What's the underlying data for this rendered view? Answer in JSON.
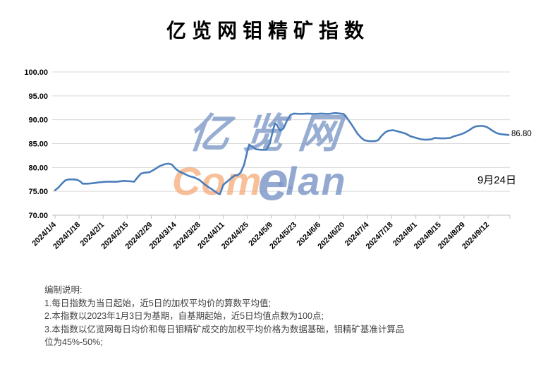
{
  "title": "亿览网钼精矿指数",
  "annotations": {
    "last_value_label": "86.80",
    "date_label": "9月24日"
  },
  "watermark": {
    "line1": "亿览网",
    "brand_com": "Com",
    "brand_e": "e",
    "brand_lan": "lan"
  },
  "notes": {
    "heading": "编制说明:",
    "items": [
      "1.每日指数为当日起始，近5日的加权平均价的算数平均值;",
      "2.本指数以2023年1月3日为基期，自基期起始，近5日均值点数为100点;",
      "3.本指数以亿览网每日均价和每日钼精矿成交的加权平均价格为数据基础，钼精矿基准计算品位为45%-50%;"
    ]
  },
  "colors": {
    "line": "#4A7EBB",
    "grid": "#D9D9D9",
    "axis": "#BFBFBF",
    "label_text": "#000000",
    "notes_text": "#404040",
    "watermark_blue": "#7994C5",
    "watermark_orange": "#F5A672"
  },
  "chart_data": {
    "type": "line",
    "title": "亿览网钼精矿指数",
    "ylabel": "",
    "xlabel": "",
    "ylim": [
      70,
      100
    ],
    "grid": true,
    "legend": false,
    "y_ticks": [
      {
        "v": 100,
        "label": "100.00"
      },
      {
        "v": 95,
        "label": "95.00"
      },
      {
        "v": 90,
        "label": "90.00"
      },
      {
        "v": 85,
        "label": "85.00"
      },
      {
        "v": 80,
        "label": "80.00"
      },
      {
        "v": 75,
        "label": "75.00"
      },
      {
        "v": 70,
        "label": "70.00"
      }
    ],
    "x_ticks": [
      {
        "day": 0,
        "label": "2024/1/4"
      },
      {
        "day": 14,
        "label": "2024/1/18"
      },
      {
        "day": 28,
        "label": "2024/2/1"
      },
      {
        "day": 42,
        "label": "2024/2/15"
      },
      {
        "day": 56,
        "label": "2024/2/29"
      },
      {
        "day": 70,
        "label": "2024/3/14"
      },
      {
        "day": 84,
        "label": "2024/3/28"
      },
      {
        "day": 98,
        "label": "2024/4/11"
      },
      {
        "day": 112,
        "label": "2024/4/25"
      },
      {
        "day": 126,
        "label": "2024/5/9"
      },
      {
        "day": 140,
        "label": "2024/5/23"
      },
      {
        "day": 154,
        "label": "2024/6/6"
      },
      {
        "day": 168,
        "label": "2024/6/20"
      },
      {
        "day": 182,
        "label": "2024/7/4"
      },
      {
        "day": 196,
        "label": "2024/7/18"
      },
      {
        "day": 210,
        "label": "2024/8/1"
      },
      {
        "day": 224,
        "label": "2024/8/15"
      },
      {
        "day": 238,
        "label": "2024/8/29"
      },
      {
        "day": 252,
        "label": "2024/9/12"
      }
    ],
    "series": [
      {
        "name": "亿览网钼精矿指数",
        "color": "#4A7EBB",
        "points": [
          [
            0,
            75.2
          ],
          [
            2,
            75.8
          ],
          [
            4,
            76.6
          ],
          [
            6,
            77.3
          ],
          [
            8,
            77.5
          ],
          [
            11,
            77.5
          ],
          [
            13,
            77.4
          ],
          [
            15,
            77.0
          ],
          [
            16,
            76.6
          ],
          [
            19,
            76.6
          ],
          [
            22,
            76.7
          ],
          [
            26,
            76.9
          ],
          [
            30,
            77.0
          ],
          [
            36,
            77.0
          ],
          [
            40,
            77.2
          ],
          [
            44,
            77.1
          ],
          [
            46,
            77.0
          ],
          [
            48,
            77.9
          ],
          [
            50,
            78.7
          ],
          [
            52,
            78.9
          ],
          [
            55,
            79.0
          ],
          [
            58,
            79.6
          ],
          [
            61,
            80.3
          ],
          [
            64,
            80.7
          ],
          [
            66,
            80.8
          ],
          [
            68,
            80.6
          ],
          [
            70,
            79.8
          ],
          [
            72,
            79.2
          ],
          [
            75,
            78.7
          ],
          [
            78,
            78.2
          ],
          [
            81,
            77.9
          ],
          [
            84,
            77.4
          ],
          [
            86,
            76.8
          ],
          [
            88,
            76.2
          ],
          [
            91,
            75.5
          ],
          [
            93,
            75.0
          ],
          [
            95,
            74.5
          ],
          [
            96,
            74.4
          ],
          [
            98,
            76.4
          ],
          [
            100,
            77.0
          ],
          [
            103,
            77.9
          ],
          [
            105,
            78.4
          ],
          [
            106,
            78.3
          ],
          [
            108,
            78.9
          ],
          [
            110,
            80.5
          ],
          [
            112,
            83.5
          ],
          [
            113,
            84.8
          ],
          [
            115,
            84.3
          ],
          [
            117,
            83.8
          ],
          [
            120,
            83.7
          ],
          [
            123,
            83.7
          ],
          [
            125,
            85.0
          ],
          [
            127,
            88.0
          ],
          [
            128,
            89.2
          ],
          [
            129,
            89.0
          ],
          [
            131,
            87.7
          ],
          [
            133,
            88.2
          ],
          [
            135,
            89.8
          ],
          [
            137,
            91.0
          ],
          [
            139,
            91.3
          ],
          [
            143,
            91.2
          ],
          [
            147,
            91.3
          ],
          [
            151,
            91.2
          ],
          [
            155,
            91.3
          ],
          [
            159,
            91.2
          ],
          [
            163,
            91.4
          ],
          [
            166,
            91.3
          ],
          [
            168,
            91.2
          ],
          [
            170,
            90.3
          ],
          [
            172,
            89.3
          ],
          [
            174,
            88.2
          ],
          [
            176,
            87.1
          ],
          [
            178,
            86.3
          ],
          [
            180,
            85.7
          ],
          [
            183,
            85.5
          ],
          [
            186,
            85.5
          ],
          [
            188,
            85.7
          ],
          [
            190,
            86.6
          ],
          [
            192,
            87.3
          ],
          [
            194,
            87.7
          ],
          [
            197,
            87.8
          ],
          [
            199,
            87.6
          ],
          [
            201,
            87.4
          ],
          [
            204,
            87.1
          ],
          [
            207,
            86.5
          ],
          [
            210,
            86.2
          ],
          [
            213,
            85.9
          ],
          [
            216,
            85.8
          ],
          [
            219,
            85.9
          ],
          [
            221,
            86.2
          ],
          [
            224,
            86.1
          ],
          [
            227,
            86.1
          ],
          [
            230,
            86.2
          ],
          [
            232,
            86.5
          ],
          [
            235,
            86.8
          ],
          [
            238,
            87.2
          ],
          [
            241,
            87.8
          ],
          [
            243,
            88.3
          ],
          [
            245,
            88.6
          ],
          [
            247,
            88.7
          ],
          [
            249,
            88.7
          ],
          [
            251,
            88.5
          ],
          [
            253,
            88.1
          ],
          [
            255,
            87.6
          ],
          [
            257,
            87.2
          ],
          [
            259,
            87.0
          ],
          [
            261,
            86.9
          ],
          [
            264,
            86.8
          ]
        ]
      }
    ],
    "end_point": {
      "date_label": "9月24日",
      "value": 86.8,
      "value_label": "86.80",
      "day": 264
    }
  }
}
